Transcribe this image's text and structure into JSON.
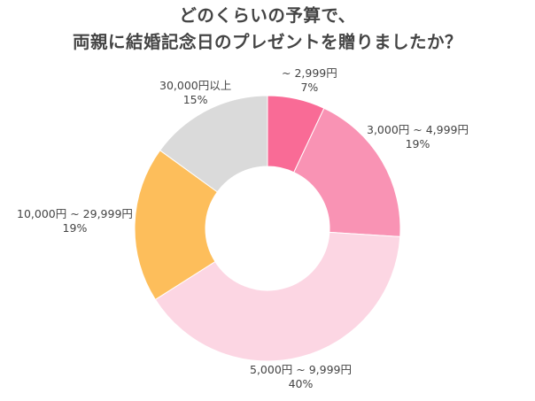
{
  "chart_data": {
    "type": "pie",
    "title": [
      "どのくらいの予算で、",
      "両親に結婚記念日のプレゼントを贈りましたか？"
    ],
    "categories": [
      "~ 2,999円",
      "3,000円 ~ 4,999円",
      "5,000円 ~ 9,999円",
      "10,000円 ~ 29,999円",
      "30,000円以上"
    ],
    "values": [
      7,
      19,
      40,
      19,
      15
    ],
    "value_labels": [
      "7%",
      "19%",
      "40%",
      "19%",
      "15%"
    ],
    "colors": [
      "#f96b96",
      "#f993b4",
      "#fcd6e3",
      "#fdbe5b",
      "#dadada"
    ],
    "start_angle_deg": 0,
    "direction": "clockwise",
    "donut": true
  }
}
